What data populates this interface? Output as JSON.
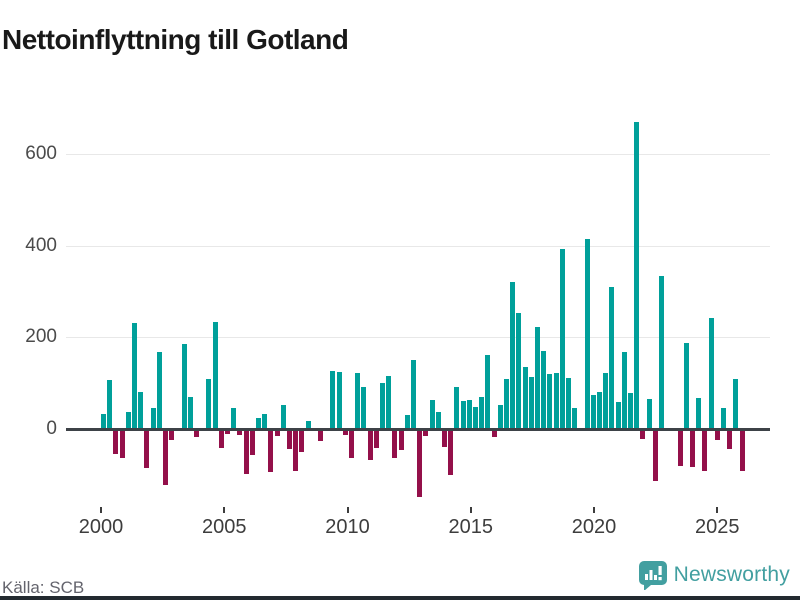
{
  "chart_data": {
    "type": "bar",
    "title": "Nettoinflyttning till Gotland",
    "xlabel": "",
    "ylabel": "",
    "ylim": [
      -160,
      700
    ],
    "yticks": [
      0,
      200,
      400,
      600
    ],
    "xticks": [
      "2000",
      "2005",
      "2010",
      "2015",
      "2020",
      "2025"
    ],
    "grid": "horizontal",
    "legend": "none",
    "colors": {
      "positive": "#00a09a",
      "negative": "#94104a"
    },
    "period": "quarterly",
    "quarterly": [
      {
        "year": 2000,
        "values": [
          32,
          106,
          -52,
          -60
        ]
      },
      {
        "year": 2001,
        "values": [
          36,
          231,
          80,
          -83
        ]
      },
      {
        "year": 2002,
        "values": [
          46,
          168,
          -119,
          -22
        ]
      },
      {
        "year": 2003,
        "values": [
          0,
          186,
          69,
          -16
        ]
      },
      {
        "year": 2004,
        "values": [
          0,
          108,
          234,
          -40
        ]
      },
      {
        "year": 2005,
        "values": [
          -9,
          46,
          -11,
          -95
        ]
      },
      {
        "year": 2006,
        "values": [
          -55,
          24,
          32,
          -92
        ]
      },
      {
        "year": 2007,
        "values": [
          -12,
          52,
          -42,
          -90
        ]
      },
      {
        "year": 2008,
        "values": [
          -47,
          18,
          0,
          -24
        ]
      },
      {
        "year": 2009,
        "values": [
          0,
          127,
          125,
          -11
        ]
      },
      {
        "year": 2010,
        "values": [
          -61,
          122,
          92,
          -65
        ]
      },
      {
        "year": 2011,
        "values": [
          -40,
          100,
          115,
          -61
        ]
      },
      {
        "year": 2012,
        "values": [
          -44,
          31,
          151,
          -147
        ]
      },
      {
        "year": 2013,
        "values": [
          -12,
          64,
          36,
          -38
        ]
      },
      {
        "year": 2014,
        "values": [
          -98,
          91,
          60,
          64
        ]
      },
      {
        "year": 2015,
        "values": [
          49,
          69,
          162,
          -16
        ]
      },
      {
        "year": 2016,
        "values": [
          52,
          109,
          321,
          252
        ]
      },
      {
        "year": 2017,
        "values": [
          136,
          113,
          223,
          171
        ]
      },
      {
        "year": 2018,
        "values": [
          120,
          122,
          393,
          111
        ]
      },
      {
        "year": 2019,
        "values": [
          46,
          0,
          415,
          74
        ]
      },
      {
        "year": 2020,
        "values": [
          81,
          122,
          310,
          58
        ]
      },
      {
        "year": 2021,
        "values": [
          167,
          79,
          670,
          -20
        ]
      },
      {
        "year": 2022,
        "values": [
          65,
          -111,
          333,
          0
        ]
      },
      {
        "year": 2023,
        "values": [
          0,
          -78,
          188,
          -80
        ]
      },
      {
        "year": 2024,
        "values": [
          68,
          -90,
          243,
          -22
        ]
      },
      {
        "year": 2025,
        "values": [
          46,
          -41,
          109,
          -89
        ]
      }
    ]
  },
  "footer": {
    "source": "Källa: SCB",
    "brand": "Newsworthy",
    "brand_color": "#429fa0",
    "logo_icon": "speech-bubble-bar-chart"
  }
}
